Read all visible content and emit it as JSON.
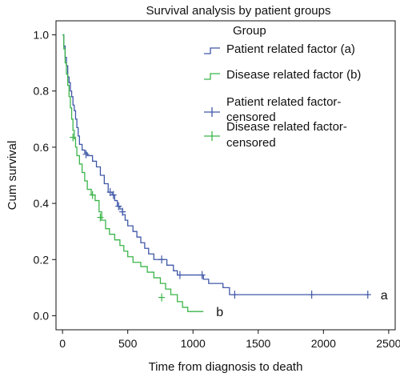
{
  "chart_data": {
    "type": "line",
    "subtype": "kaplan-meier step curve",
    "title": "Survival analysis by patient groups",
    "xlabel": "Time from diagnosis to death",
    "ylabel": "Cum survival",
    "xlim": [
      -50,
      2550
    ],
    "ylim": [
      -0.05,
      1.05
    ],
    "xticks": [
      0,
      500,
      1000,
      1500,
      2000,
      2500
    ],
    "yticks": [
      0.0,
      0.2,
      0.4,
      0.6,
      0.8,
      1.0
    ],
    "xtick_labels": [
      "0",
      "500",
      "1000",
      "1500",
      "2000",
      "2500"
    ],
    "ytick_labels": [
      "0.0",
      "0.2",
      "0.4",
      "0.6",
      "0.8",
      "1.0"
    ],
    "grid": false,
    "legend": {
      "title": "Group",
      "placement": "top-right",
      "entries": [
        "Patient related factor (a)",
        "Disease related factor (b)",
        "Patient related factor-censored",
        "Disease related factor-censored"
      ]
    },
    "series": [
      {
        "name": "Patient related factor (a)",
        "end_label": "a",
        "color": "#3f58a8",
        "steps": [
          [
            0,
            1.0
          ],
          [
            10,
            0.96
          ],
          [
            20,
            0.92
          ],
          [
            30,
            0.89
          ],
          [
            40,
            0.85
          ],
          [
            50,
            0.83
          ],
          [
            60,
            0.8
          ],
          [
            70,
            0.78
          ],
          [
            80,
            0.75
          ],
          [
            90,
            0.73
          ],
          [
            100,
            0.7
          ],
          [
            110,
            0.67
          ],
          [
            120,
            0.64
          ],
          [
            130,
            0.61
          ],
          [
            150,
            0.59
          ],
          [
            170,
            0.58
          ],
          [
            190,
            0.57
          ],
          [
            230,
            0.55
          ],
          [
            260,
            0.53
          ],
          [
            290,
            0.5
          ],
          [
            320,
            0.47
          ],
          [
            350,
            0.44
          ],
          [
            380,
            0.43
          ],
          [
            400,
            0.41
          ],
          [
            420,
            0.39
          ],
          [
            440,
            0.38
          ],
          [
            460,
            0.36
          ],
          [
            480,
            0.34
          ],
          [
            500,
            0.32
          ],
          [
            540,
            0.3
          ],
          [
            570,
            0.28
          ],
          [
            600,
            0.26
          ],
          [
            630,
            0.24
          ],
          [
            660,
            0.22
          ],
          [
            700,
            0.2
          ],
          [
            800,
            0.18
          ],
          [
            850,
            0.16
          ],
          [
            880,
            0.145
          ],
          [
            1000,
            0.145
          ],
          [
            1080,
            0.13
          ],
          [
            1120,
            0.115
          ],
          [
            1230,
            0.1
          ],
          [
            1280,
            0.075
          ],
          [
            2340,
            0.075
          ]
        ],
        "censored": [
          [
            180,
            0.575
          ],
          [
            365,
            0.44
          ],
          [
            390,
            0.43
          ],
          [
            430,
            0.39
          ],
          [
            460,
            0.37
          ],
          [
            760,
            0.2
          ],
          [
            900,
            0.145
          ],
          [
            1070,
            0.145
          ],
          [
            1320,
            0.075
          ],
          [
            1910,
            0.075
          ],
          [
            2340,
            0.075
          ]
        ]
      },
      {
        "name": "Disease related factor (b)",
        "end_label": "b",
        "color": "#3bb54a",
        "steps": [
          [
            0,
            1.0
          ],
          [
            10,
            0.95
          ],
          [
            20,
            0.9
          ],
          [
            30,
            0.86
          ],
          [
            40,
            0.82
          ],
          [
            50,
            0.78
          ],
          [
            60,
            0.74
          ],
          [
            70,
            0.7
          ],
          [
            80,
            0.66
          ],
          [
            90,
            0.63
          ],
          [
            100,
            0.6
          ],
          [
            110,
            0.57
          ],
          [
            130,
            0.54
          ],
          [
            150,
            0.51
          ],
          [
            170,
            0.48
          ],
          [
            190,
            0.45
          ],
          [
            220,
            0.43
          ],
          [
            250,
            0.41
          ],
          [
            280,
            0.37
          ],
          [
            300,
            0.34
          ],
          [
            330,
            0.31
          ],
          [
            360,
            0.29
          ],
          [
            400,
            0.27
          ],
          [
            440,
            0.25
          ],
          [
            470,
            0.23
          ],
          [
            500,
            0.21
          ],
          [
            540,
            0.19
          ],
          [
            600,
            0.175
          ],
          [
            650,
            0.155
          ],
          [
            700,
            0.135
          ],
          [
            750,
            0.115
          ],
          [
            790,
            0.095
          ],
          [
            830,
            0.075
          ],
          [
            880,
            0.05
          ],
          [
            920,
            0.03
          ],
          [
            960,
            0.015
          ],
          [
            1080,
            0.015
          ]
        ],
        "censored": [
          [
            80,
            0.635
          ],
          [
            230,
            0.43
          ],
          [
            290,
            0.35
          ],
          [
            760,
            0.065
          ]
        ]
      }
    ]
  }
}
